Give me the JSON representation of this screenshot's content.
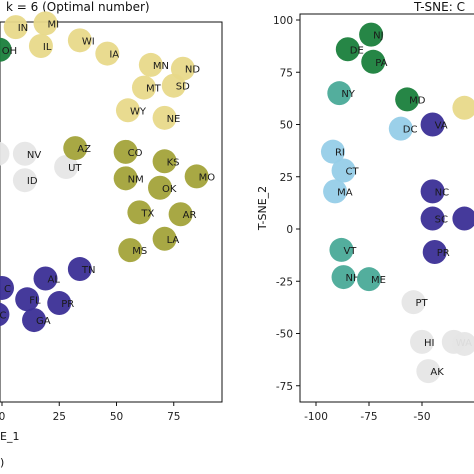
{
  "chart_data": [
    {
      "type": "scatter",
      "title": "k = 6 (Optimal number)",
      "xlabel": "E_1",
      "ylabel": "",
      "xlim": [
        0,
        93
      ],
      "xticks": [
        0,
        25,
        50,
        75
      ],
      "grid": false,
      "corner_label": ")",
      "points": [
        {
          "label": "IN",
          "x": 6,
          "y": 92,
          "color": "#e8d98a"
        },
        {
          "label": "MI",
          "x": 19,
          "y": 94,
          "color": "#e8d98a"
        },
        {
          "label": "IL",
          "x": 17,
          "y": 82,
          "color": "#e8d98a"
        },
        {
          "label": "WI",
          "x": 34,
          "y": 85,
          "color": "#e8d98a"
        },
        {
          "label": "OH",
          "x": -1,
          "y": 80,
          "color": "#1a7f3c"
        },
        {
          "label": "IA",
          "x": 46,
          "y": 78,
          "color": "#e8d98a"
        },
        {
          "label": "MN",
          "x": 65,
          "y": 72,
          "color": "#e8d98a"
        },
        {
          "label": "ND",
          "x": 79,
          "y": 70,
          "color": "#e8d98a"
        },
        {
          "label": "MT",
          "x": 62,
          "y": 60,
          "color": "#e8d98a"
        },
        {
          "label": "SD",
          "x": 75,
          "y": 61,
          "color": "#e8d98a"
        },
        {
          "label": "WY",
          "x": 55,
          "y": 48,
          "color": "#e8d98a"
        },
        {
          "label": "NE",
          "x": 71,
          "y": 44,
          "color": "#e8d98a"
        },
        {
          "label": "NV",
          "x": 10,
          "y": 25,
          "color": "#e6e6e6"
        },
        {
          "label": "ID",
          "x": 10,
          "y": 11,
          "color": "#e6e6e6"
        },
        {
          "label": "UT",
          "x": 28,
          "y": 18,
          "color": "#e6e6e6"
        },
        {
          "label": "AZ",
          "x": 32,
          "y": 28,
          "color": "#a3a33a"
        },
        {
          "label": "CO",
          "x": 54,
          "y": 26,
          "color": "#a3a33a"
        },
        {
          "label": "KS",
          "x": 71,
          "y": 21,
          "color": "#a3a33a"
        },
        {
          "label": "MO",
          "x": 85,
          "y": 13,
          "color": "#a3a33a"
        },
        {
          "label": "NM",
          "x": 54,
          "y": 12,
          "color": "#a3a33a"
        },
        {
          "label": "OK",
          "x": 69,
          "y": 7,
          "color": "#a3a33a"
        },
        {
          "label": "TX",
          "x": 60,
          "y": -6,
          "color": "#a3a33a"
        },
        {
          "label": "AR",
          "x": 78,
          "y": -7,
          "color": "#a3a33a"
        },
        {
          "label": "LA",
          "x": 71,
          "y": -20,
          "color": "#a3a33a"
        },
        {
          "label": "MS",
          "x": 56,
          "y": -26,
          "color": "#a3a33a"
        },
        {
          "label": "AL",
          "x": 19,
          "y": -41,
          "color": "#3b2f96"
        },
        {
          "label": "TN",
          "x": 34,
          "y": -36,
          "color": "#3b2f96"
        },
        {
          "label": "FL",
          "x": 11,
          "y": -52,
          "color": "#3b2f96"
        },
        {
          "label": "PR",
          "x": 25,
          "y": -54,
          "color": "#3b2f96"
        },
        {
          "label": "GA",
          "x": 14,
          "y": -63,
          "color": "#3b2f96"
        },
        {
          "label": "C",
          "x": 0,
          "y": -46,
          "color": "#3b2f96"
        },
        {
          "label": "C",
          "x": -2,
          "y": -60,
          "color": "#3b2f96"
        },
        {
          "label": "",
          "x": -2,
          "y": 25,
          "color": "#e6e6e6"
        }
      ]
    },
    {
      "type": "scatter",
      "title": "T-SNE: C",
      "xlabel": "",
      "ylabel": "T-SNE_2",
      "xlim": [
        -104,
        -28
      ],
      "ylim": [
        -86,
        104
      ],
      "xticks": [
        -100,
        -75,
        -50
      ],
      "yticks": [
        100,
        75,
        50,
        25,
        0,
        -25,
        -50,
        -75
      ],
      "grid": false,
      "points": [
        {
          "label": "NJ",
          "x": -74,
          "y": 93,
          "color": "#1a7f3c"
        },
        {
          "label": "DE",
          "x": -85,
          "y": 86,
          "color": "#1a7f3c"
        },
        {
          "label": "PA",
          "x": -73,
          "y": 80,
          "color": "#1a7f3c"
        },
        {
          "label": "NY",
          "x": -89,
          "y": 65,
          "color": "#4aaa98"
        },
        {
          "label": "MD",
          "x": -57,
          "y": 62,
          "color": "#1a7f3c"
        },
        {
          "label": "RI",
          "x": -92,
          "y": 37,
          "color": "#96cde8"
        },
        {
          "label": "DC",
          "x": -60,
          "y": 48,
          "color": "#96cde8"
        },
        {
          "label": "VA",
          "x": -45,
          "y": 50,
          "color": "#3b2f96"
        },
        {
          "label": "CT",
          "x": -87,
          "y": 28,
          "color": "#96cde8"
        },
        {
          "label": "MA",
          "x": -91,
          "y": 18,
          "color": "#96cde8"
        },
        {
          "label": "NC",
          "x": -45,
          "y": 18,
          "color": "#3b2f96"
        },
        {
          "label": "SC",
          "x": -45,
          "y": 5,
          "color": "#3b2f96"
        },
        {
          "label": "PR",
          "x": -44,
          "y": -11,
          "color": "#3b2f96"
        },
        {
          "label": "VT",
          "x": -88,
          "y": -10,
          "color": "#4aaa98"
        },
        {
          "label": "NH",
          "x": -87,
          "y": -23,
          "color": "#4aaa98"
        },
        {
          "label": "ME",
          "x": -75,
          "y": -24,
          "color": "#4aaa98"
        },
        {
          "label": "PT",
          "x": -54,
          "y": -35,
          "color": "#e6e6e6"
        },
        {
          "label": "HI",
          "x": -50,
          "y": -54,
          "color": "#e6e6e6"
        },
        {
          "label": "WA",
          "x": -35,
          "y": -54,
          "color": "#e6e6e6"
        },
        {
          "label": "AK",
          "x": -47,
          "y": -68,
          "color": "#e6e6e6"
        },
        {
          "label": "",
          "x": -30,
          "y": 58,
          "color": "#e8d98a"
        },
        {
          "label": "",
          "x": -30,
          "y": 5,
          "color": "#3b2f96"
        },
        {
          "label": "",
          "x": -30,
          "y": -55,
          "color": "#e6e6e6"
        }
      ]
    }
  ]
}
